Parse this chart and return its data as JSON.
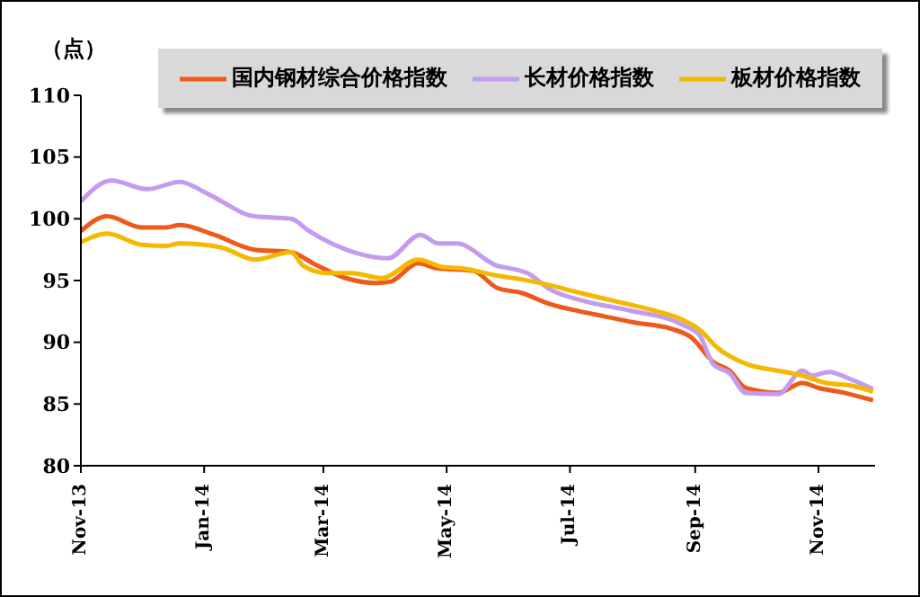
{
  "chart_data": {
    "type": "line",
    "ylabel": "（点）",
    "xlim": [
      "2013-11-01",
      "2014-11-29"
    ],
    "xticks": [
      {
        "value": "2013-11-01",
        "label": "Nov-13"
      },
      {
        "value": "2014-01-01",
        "label": "Jan-14"
      },
      {
        "value": "2014-03-01",
        "label": "Mar-14"
      },
      {
        "value": "2014-05-01",
        "label": "May-14"
      },
      {
        "value": "2014-07-01",
        "label": "Jul-14"
      },
      {
        "value": "2014-09-01",
        "label": "Sep-14"
      },
      {
        "value": "2014-11-01",
        "label": "Nov-14"
      }
    ],
    "ylim": [
      80,
      110
    ],
    "yticks": [
      80,
      85,
      90,
      95,
      100,
      105,
      110
    ],
    "grid": false,
    "legend": "top",
    "line_style": "solid",
    "marker": "none",
    "series": [
      {
        "name": "国内钢材综合价格指数",
        "color": "#ee5a1c",
        "x": [
          "2013-11-01",
          "2013-11-14",
          "2013-12-01",
          "2013-12-13",
          "2013-12-20",
          "2014-01-06",
          "2014-01-26",
          "2014-02-13",
          "2014-02-25",
          "2014-03-12",
          "2014-03-27",
          "2014-04-03",
          "2014-04-17",
          "2014-04-26",
          "2014-05-14",
          "2014-05-26",
          "2014-06-07",
          "2014-06-21",
          "2014-07-06",
          "2014-07-18",
          "2014-08-02",
          "2014-08-20",
          "2014-08-30",
          "2014-09-10",
          "2014-09-18",
          "2014-09-26",
          "2014-10-12",
          "2014-10-24",
          "2014-11-01",
          "2014-11-11",
          "2014-11-28"
        ],
        "values": [
          99.0,
          100.2,
          99.3,
          99.3,
          99.5,
          98.7,
          97.5,
          97.3,
          96.3,
          95.2,
          94.8,
          94.9,
          96.4,
          96.0,
          95.8,
          94.4,
          94.0,
          93.1,
          92.5,
          92.1,
          91.6,
          91.1,
          90.4,
          88.4,
          87.7,
          86.3,
          85.9,
          86.7,
          86.3,
          86.0,
          85.3
        ]
      },
      {
        "name": "长材价格指数",
        "color": "#c39cf0",
        "x": [
          "2013-11-01",
          "2013-11-16",
          "2013-12-04",
          "2013-12-20",
          "2014-01-03",
          "2014-01-26",
          "2014-02-13",
          "2014-02-22",
          "2014-03-18",
          "2014-04-02",
          "2014-04-18",
          "2014-04-27",
          "2014-05-06",
          "2014-05-26",
          "2014-06-04",
          "2014-06-10",
          "2014-06-21",
          "2014-07-09",
          "2014-07-30",
          "2014-08-26",
          "2014-09-03",
          "2014-09-10",
          "2014-09-18",
          "2014-09-26",
          "2014-10-12",
          "2014-10-24",
          "2014-10-29",
          "2014-11-06",
          "2014-11-17",
          "2014-11-28"
        ],
        "values": [
          101.4,
          103.1,
          102.4,
          103.0,
          102.0,
          100.2,
          100.0,
          99.0,
          97.2,
          96.8,
          98.7,
          98.0,
          98.0,
          96.2,
          95.9,
          95.6,
          94.3,
          93.3,
          92.6,
          91.4,
          90.6,
          88.2,
          87.5,
          85.9,
          85.8,
          87.7,
          87.3,
          87.6,
          87.0,
          86.2
        ]
      },
      {
        "name": "板材价格指数",
        "color": "#f5b800",
        "x": [
          "2013-11-01",
          "2013-11-14",
          "2013-12-01",
          "2013-12-13",
          "2013-12-20",
          "2014-01-09",
          "2014-01-26",
          "2014-02-13",
          "2014-02-19",
          "2014-03-03",
          "2014-03-15",
          "2014-03-30",
          "2014-04-17",
          "2014-04-29",
          "2014-05-08",
          "2014-05-26",
          "2014-06-07",
          "2014-06-19",
          "2014-07-06",
          "2014-07-24",
          "2014-08-11",
          "2014-08-26",
          "2014-09-04",
          "2014-09-11",
          "2014-09-27",
          "2014-10-12",
          "2014-10-24",
          "2014-11-05",
          "2014-11-17",
          "2014-11-28"
        ],
        "values": [
          98.1,
          98.8,
          97.9,
          97.8,
          98.0,
          97.7,
          96.7,
          97.3,
          96.2,
          95.6,
          95.6,
          95.2,
          96.7,
          96.1,
          96.0,
          95.4,
          95.1,
          94.7,
          94.0,
          93.3,
          92.6,
          91.8,
          90.9,
          89.7,
          88.2,
          87.7,
          87.3,
          86.7,
          86.5,
          86.0
        ]
      }
    ]
  }
}
